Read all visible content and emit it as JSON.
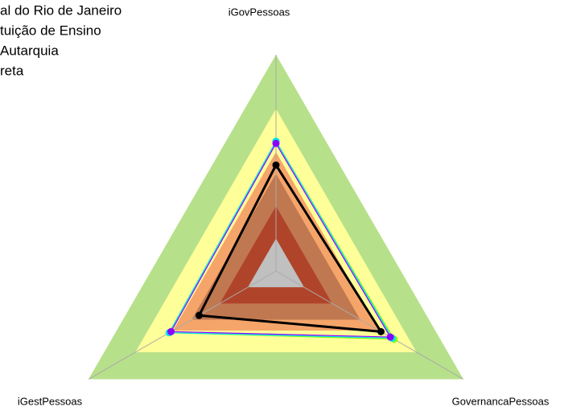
{
  "chart_data": {
    "type": "radar",
    "categories": [
      "iGovPessoas",
      "GovernancaPessoas",
      "iGestPessoas"
    ],
    "rlim": [
      0,
      1
    ],
    "bands": [
      {
        "value": 1.0,
        "color": "#b7e08a"
      },
      {
        "value": 0.75,
        "color": "#ffff99"
      },
      {
        "value": 0.55,
        "color": "#f5a56a"
      },
      {
        "value": 0.45,
        "color": "#c07850"
      },
      {
        "value": 0.3,
        "color": "#b0442a"
      },
      {
        "value": 0.15,
        "color": "#c0c0c0"
      }
    ],
    "series": [
      {
        "name": "al do Rio de Janeiro",
        "color": "#7fff00",
        "values": [
          0.6,
          0.63,
          0.57
        ]
      },
      {
        "name": "tuição de Ensino",
        "color": "#00e5ee",
        "values": [
          0.6,
          0.62,
          0.57
        ]
      },
      {
        "name": "Autarquia",
        "color": "#8a00ff",
        "values": [
          0.59,
          0.61,
          0.56
        ]
      },
      {
        "name": "reta",
        "color": "#000000",
        "values": [
          0.49,
          0.56,
          0.41
        ]
      }
    ]
  }
}
